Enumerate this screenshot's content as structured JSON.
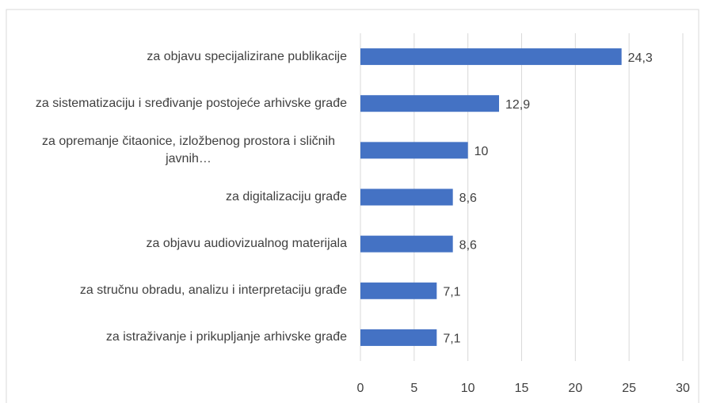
{
  "chart_data": {
    "type": "bar",
    "orientation": "horizontal",
    "categories": [
      "za objavu specijalizirane publikacije",
      "za sistematizaciju i sređivanje postojeće arhivske građe",
      "za opremanje čitaonice, izložbenog prostora i sličnih javnih…",
      "za digitalizaciju građe",
      "za objavu audiovizualnog materijala",
      "za stručnu obradu, analizu i interpretaciju građe",
      "za istraživanje i prikupljanje arhivske građe"
    ],
    "values": [
      24.3,
      12.9,
      10,
      8.6,
      8.6,
      7.1,
      7.1
    ],
    "value_labels": [
      "24,3",
      "12,9",
      "10",
      "8,6",
      "8,6",
      "7,1",
      "7,1"
    ],
    "color": "#4472c4",
    "xlim": [
      0,
      30
    ],
    "xticks": [
      0,
      5,
      10,
      15,
      20,
      25,
      30
    ],
    "grid": true
  }
}
